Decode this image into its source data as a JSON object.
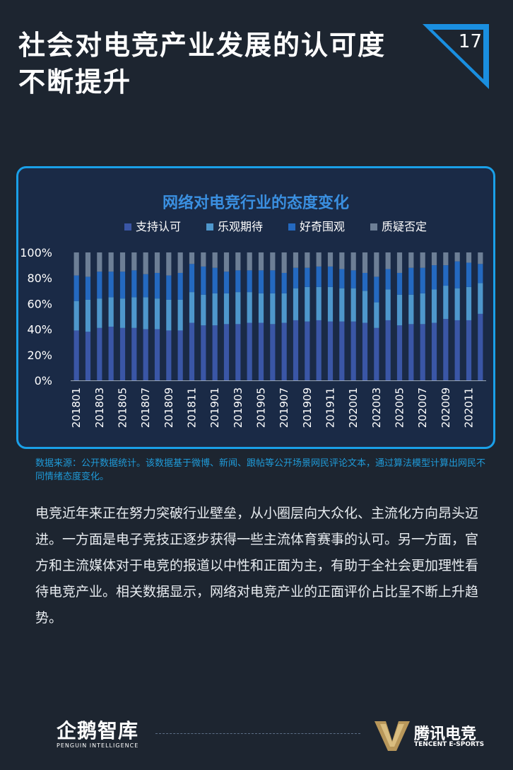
{
  "header": {
    "title_line1": "社会对电竞产业发展的认可度",
    "title_line2": "不断提升",
    "page_number": "17"
  },
  "colors": {
    "background": "#1d2530",
    "panel_border": "#1aa0e8",
    "panel_fill": "#1a2a46",
    "support": "#3a56a6",
    "optimistic": "#4e97cc",
    "curious": "#2469c0",
    "doubt": "#6d7f96",
    "accent_corner": "#1a8fe0",
    "source_text": "#1f9ad8"
  },
  "chart_data": {
    "type": "bar",
    "stacked": true,
    "title": "网络对电竞行业的态度变化",
    "legend_position": "top",
    "ylim": [
      0,
      100
    ],
    "yticks": [
      "0%",
      "20%",
      "40%",
      "60%",
      "80%",
      "100%"
    ],
    "x_tick_labels": [
      "201801",
      "201803",
      "201805",
      "201807",
      "201809",
      "201811",
      "201901",
      "201903",
      "201905",
      "201907",
      "201909",
      "201911",
      "202001",
      "202003",
      "202005",
      "202007",
      "202009",
      "202011"
    ],
    "categories": [
      "201801",
      "201802",
      "201803",
      "201804",
      "201805",
      "201806",
      "201807",
      "201808",
      "201809",
      "201810",
      "201811",
      "201812",
      "201901",
      "201902",
      "201903",
      "201904",
      "201905",
      "201906",
      "201907",
      "201908",
      "201909",
      "201910",
      "201911",
      "201912",
      "202001",
      "202002",
      "202003",
      "202004",
      "202005",
      "202006",
      "202007",
      "202008",
      "202009",
      "202010",
      "202011",
      "202012"
    ],
    "series": [
      {
        "name": "支持认可",
        "values": [
          39,
          38,
          41,
          42,
          41,
          41,
          40,
          40,
          39,
          39,
          45,
          43,
          43,
          44,
          44,
          45,
          45,
          44,
          45,
          47,
          46,
          47,
          46,
          46,
          46,
          45,
          41,
          47,
          43,
          44,
          44,
          45,
          48,
          47,
          47,
          52
        ]
      },
      {
        "name": "乐观期待",
        "values": [
          23,
          25,
          23,
          23,
          23,
          24,
          25,
          24,
          24,
          24,
          24,
          24,
          25,
          24,
          25,
          24,
          23,
          24,
          23,
          25,
          27,
          26,
          27,
          26,
          26,
          25,
          20,
          24,
          24,
          23,
          24,
          26,
          26,
          25,
          26,
          24
        ]
      },
      {
        "name": "好奇围观",
        "values": [
          20,
          18,
          21,
          20,
          21,
          21,
          18,
          20,
          19,
          21,
          22,
          22,
          20,
          17,
          17,
          17,
          18,
          18,
          16,
          16,
          15,
          16,
          16,
          15,
          14,
          14,
          20,
          16,
          17,
          21,
          20,
          19,
          16,
          21,
          19,
          15
        ]
      },
      {
        "name": "质疑否定",
        "values": [
          18,
          19,
          15,
          15,
          15,
          14,
          17,
          16,
          18,
          16,
          9,
          11,
          12,
          15,
          14,
          14,
          14,
          14,
          16,
          12,
          12,
          11,
          11,
          13,
          14,
          16,
          19,
          13,
          16,
          12,
          12,
          10,
          10,
          7,
          8,
          9
        ]
      }
    ]
  },
  "source_note": "数据来源：公开数据统计。该数据基于微博、新闻、跟帖等公开场景网民评论文本，通过算法模型计算出网民不同情绪态度变化。",
  "body_text": "电竞近年来正在努力突破行业壁垒，从小圈层向大众化、主流化方向昂头迈进。一方面是电子竞技正逐步获得一些主流体育赛事的认可。另一方面，官方和主流媒体对于电竞的报道以中性和正面为主，有助于全社会更加理性看待电竞产业。相关数据显示，网络对电竞产业的正面评价占比呈不断上升趋势。",
  "footer": {
    "left_logo_cn": "企鹅智库",
    "left_logo_en": "PENGUIN INTELLIGENCE",
    "right_logo_cn": "腾讯电竞",
    "right_logo_en": "TENCENT E-SPORTS"
  }
}
